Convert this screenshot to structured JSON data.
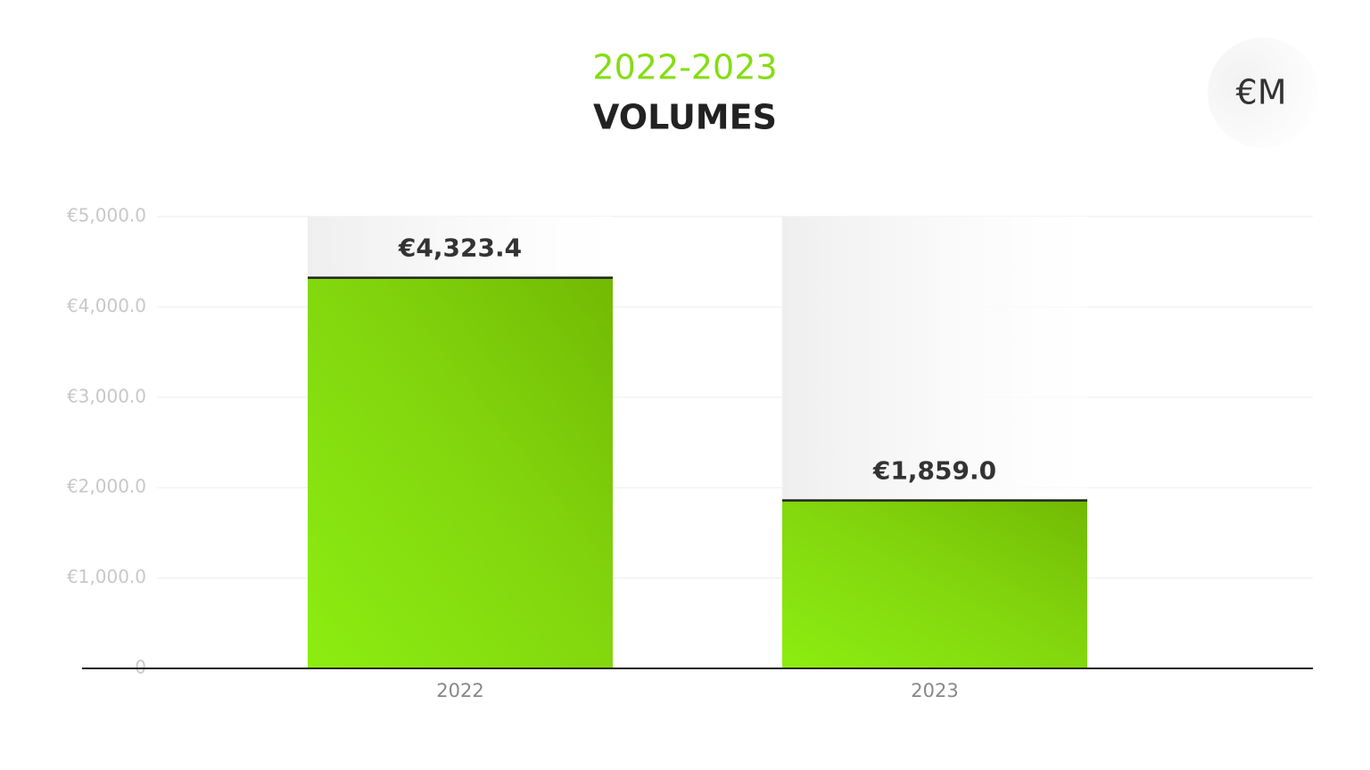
{
  "chart_data": {
    "type": "bar",
    "title": "2022-2023",
    "subtitle": "VOLUMES",
    "unit_badge": "€M",
    "categories": [
      "2022",
      "2023"
    ],
    "values": [
      4323.4,
      1859.0
    ],
    "value_labels": [
      "€4,323.4",
      "€1,859.0"
    ],
    "color": "#84dd12",
    "ylim": [
      0,
      5000
    ],
    "yticks": [
      0,
      {
        "value": 1000,
        "label": "€1,000.0"
      },
      {
        "value": 2000,
        "label": "€2,000.0"
      },
      {
        "value": 3000,
        "label": "€3,000.0"
      },
      {
        "value": 4000,
        "label": "€4,000.0"
      },
      {
        "value": 5000,
        "label": "€5,000.0"
      }
    ],
    "grid": true
  }
}
